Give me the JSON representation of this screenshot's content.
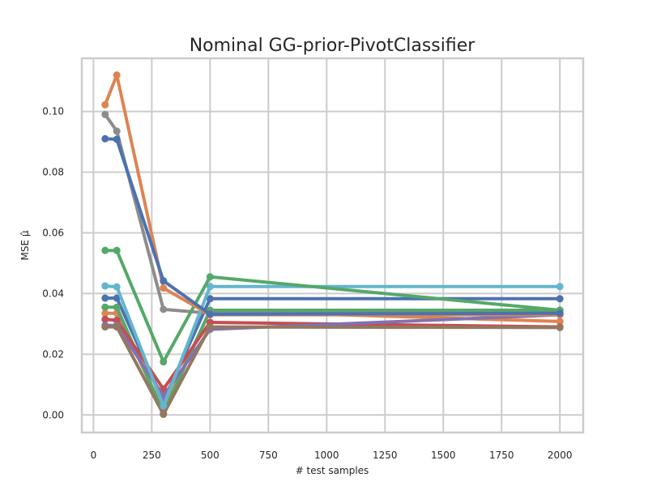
{
  "chart_data": {
    "type": "line",
    "title": "Nominal GG-prior-PivotClassifier",
    "xlabel": "# test samples",
    "ylabel": "MSE μ̂",
    "x": [
      50,
      100,
      300,
      500,
      2000
    ],
    "xlim": [
      -50,
      2100
    ],
    "ylim": [
      -0.0058,
      0.1175
    ],
    "xticks": [
      0,
      250,
      500,
      750,
      1000,
      1250,
      1500,
      1750,
      2000
    ],
    "xtick_labels": [
      "0",
      "250",
      "500",
      "750",
      "1000",
      "1250",
      "1500",
      "1750",
      "2000"
    ],
    "yticks": [
      0.0,
      0.02,
      0.04,
      0.06,
      0.08,
      0.1
    ],
    "ytick_labels": [
      "0.00",
      "0.02",
      "0.04",
      "0.06",
      "0.08",
      "0.10"
    ],
    "grid": true,
    "legend": "none",
    "series": [
      {
        "color": "#4c72b0",
        "values": [
          0.0385,
          0.0385,
          0.0045,
          0.0383,
          0.0383
        ]
      },
      {
        "color": "#dd8452",
        "values": [
          0.0335,
          0.0335,
          0.0015,
          0.0343,
          0.0308
        ]
      },
      {
        "color": "#55a868",
        "values": [
          0.0355,
          0.0355,
          0.0005,
          0.0345,
          0.0345
        ]
      },
      {
        "color": "#c44e52",
        "values": [
          0.0315,
          0.0312,
          0.0085,
          0.0305,
          0.029
        ]
      },
      {
        "color": "#8172b3",
        "values": [
          0.0295,
          0.0295,
          0.0062,
          0.0282,
          0.033
        ]
      },
      {
        "color": "#937860",
        "values": [
          0.029,
          0.029,
          0.0002,
          0.029,
          0.0288
        ]
      },
      {
        "color": "#8c8c8c",
        "values": [
          0.099,
          0.0935,
          0.0348,
          0.0335,
          0.0335
        ]
      },
      {
        "color": "#64b5cd",
        "values": [
          0.0425,
          0.0422,
          0.003,
          0.0423,
          0.0423
        ]
      },
      {
        "color": "#55a868",
        "values": [
          0.0542,
          0.0542,
          0.0175,
          0.0455,
          0.0345
        ]
      },
      {
        "color": "#dd8452",
        "values": [
          0.1022,
          0.112,
          0.0418,
          0.033,
          0.033
        ]
      },
      {
        "color": "#4c72b0",
        "values": [
          0.091,
          0.0908,
          0.0442,
          0.0332,
          0.0335
        ]
      }
    ]
  }
}
